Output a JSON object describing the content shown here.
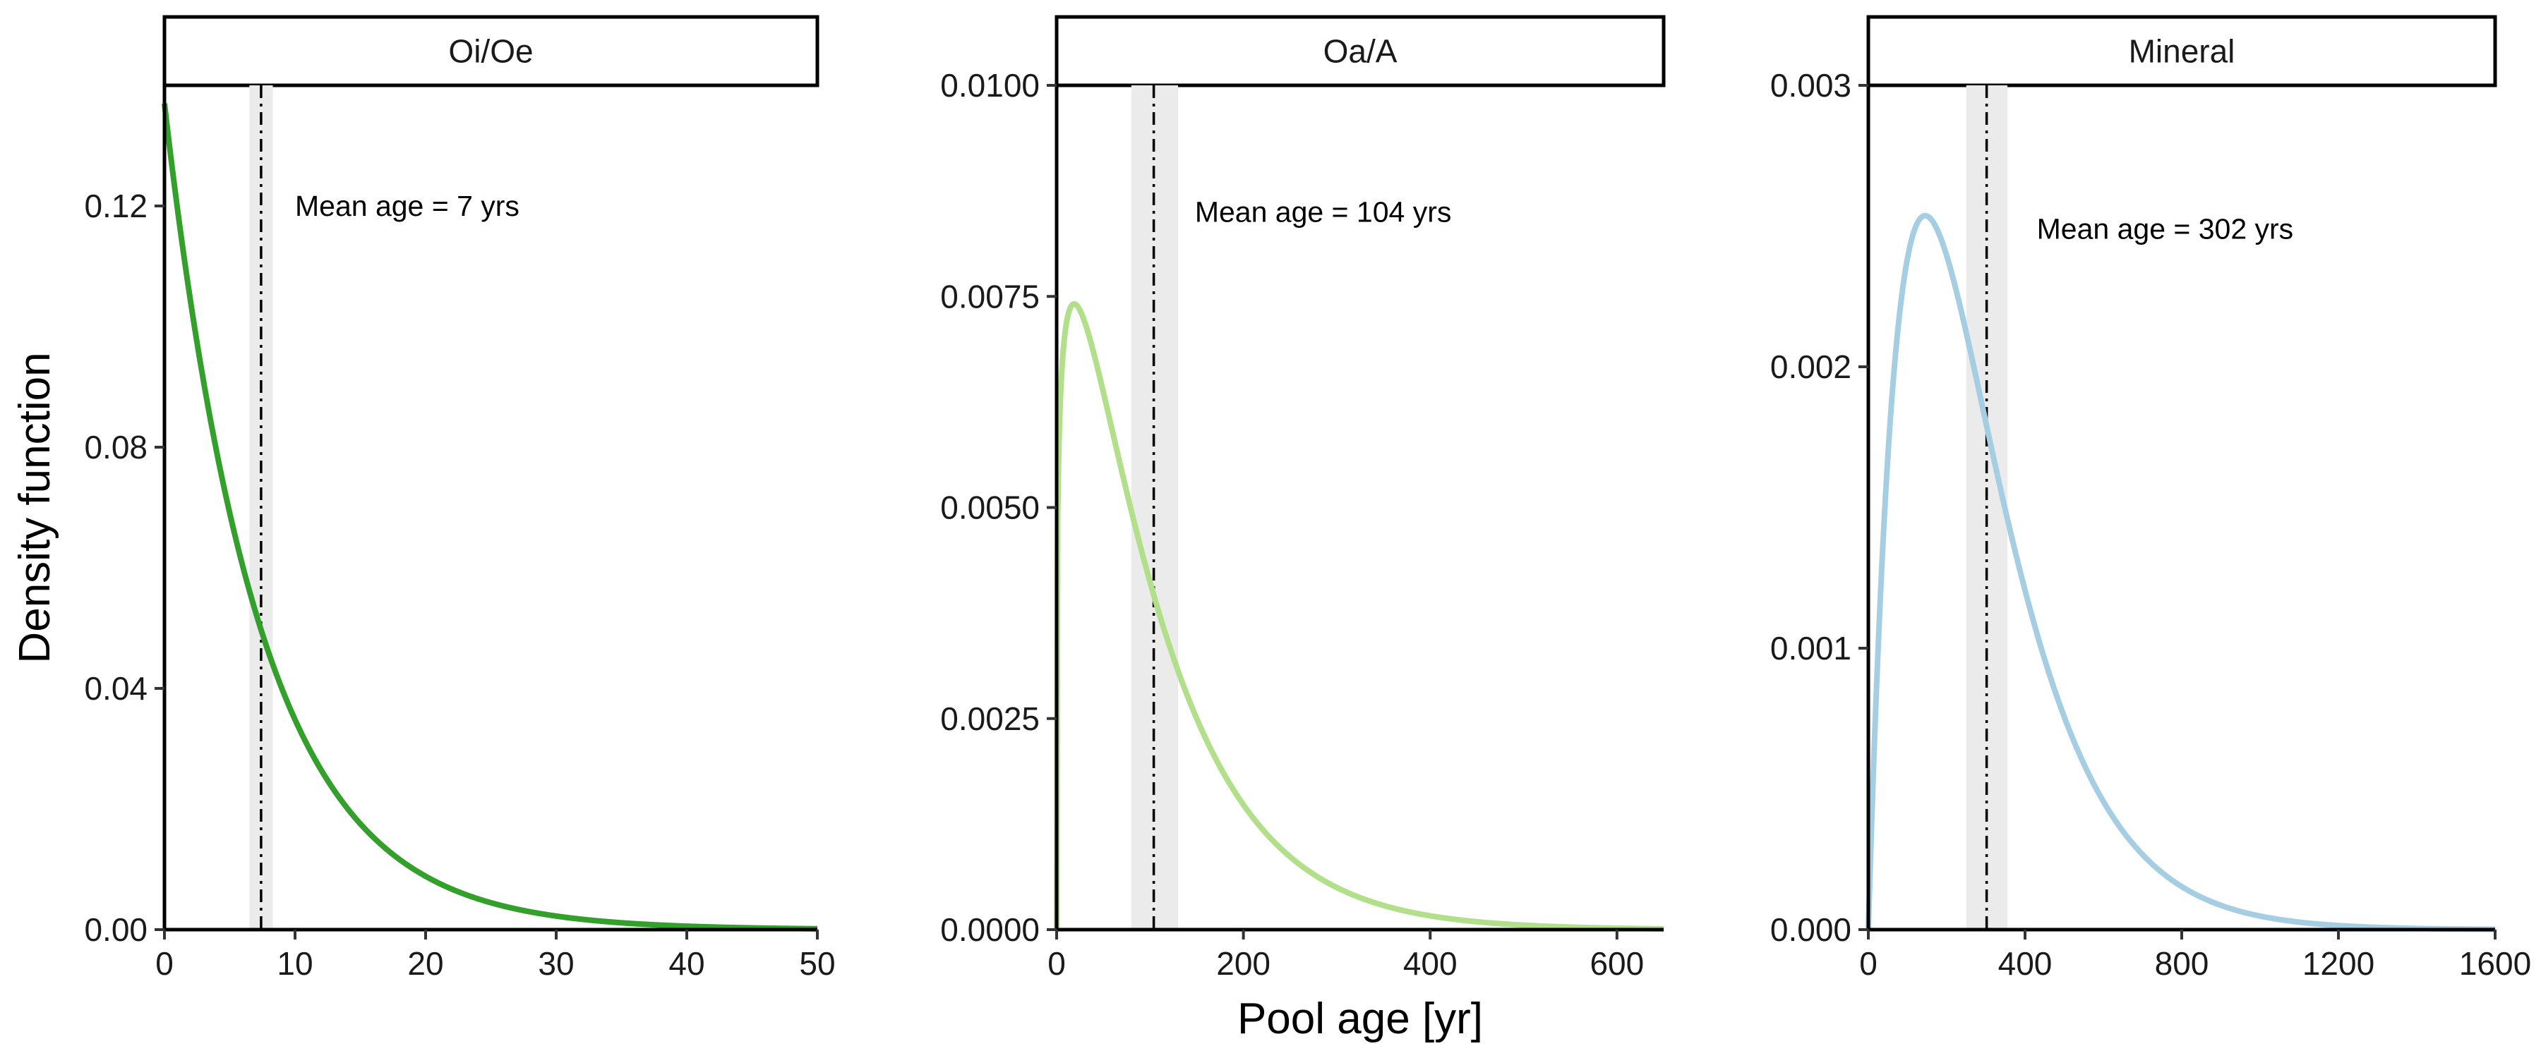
{
  "chart_data": {
    "type": "line",
    "ylabel": "Density function",
    "xlabel": "Pool age [yr]",
    "panels": [
      {
        "name": "Oi/Oe",
        "color": "#33a02c",
        "distribution": {
          "type": "exponential",
          "mean": 7.3
        },
        "mean_age": 7.4,
        "mean_band": [
          6.5,
          8.3
        ],
        "annotation": "Mean age = 7 yrs",
        "annotation_pos": [
          10,
          0.12
        ],
        "xlim": [
          0,
          50
        ],
        "ylim": [
          0,
          0.14
        ],
        "xticks": [
          0,
          10,
          20,
          30,
          40,
          50
        ],
        "xtick_labels": [
          "0",
          "10",
          "20",
          "30",
          "40",
          "50"
        ],
        "yticks": [
          0,
          0.04,
          0.08,
          0.12
        ],
        "ytick_labels": [
          "0.00",
          "0.04",
          "0.08",
          "0.12"
        ]
      },
      {
        "name": "Oa/A",
        "color": "#b2df8a",
        "distribution": {
          "type": "gamma",
          "shape": 1.22,
          "scale": 85
        },
        "mean_age": 104,
        "mean_band": [
          80,
          130
        ],
        "annotation": "Mean age = 104 yrs",
        "annotation_pos": [
          148,
          0.0085
        ],
        "xlim": [
          0,
          650
        ],
        "ylim": [
          0,
          0.01
        ],
        "xticks": [
          0,
          200,
          400,
          600
        ],
        "xtick_labels": [
          "0",
          "200",
          "400",
          "600"
        ],
        "yticks": [
          0,
          0.0025,
          0.005,
          0.0075,
          0.01
        ],
        "ytick_labels": [
          "0.0000",
          "0.0025",
          "0.0050",
          "0.0075",
          "0.0100"
        ]
      },
      {
        "name": "Mineral",
        "color": "#a6cee3",
        "distribution": {
          "type": "gamma",
          "shape": 2.0,
          "scale": 145
        },
        "mean_age": 302,
        "mean_band": [
          250,
          355
        ],
        "annotation": "Mean age = 302 yrs",
        "annotation_pos": [
          430,
          0.00249
        ],
        "xlim": [
          0,
          1600
        ],
        "ylim": [
          0,
          0.003
        ],
        "xticks": [
          0,
          400,
          800,
          1200,
          1600
        ],
        "xtick_labels": [
          "0",
          "400",
          "800",
          "1200",
          "1600"
        ],
        "yticks": [
          0,
          0.001,
          0.002,
          0.003
        ],
        "ytick_labels": [
          "0.000",
          "0.001",
          "0.002",
          "0.003"
        ]
      }
    ]
  }
}
